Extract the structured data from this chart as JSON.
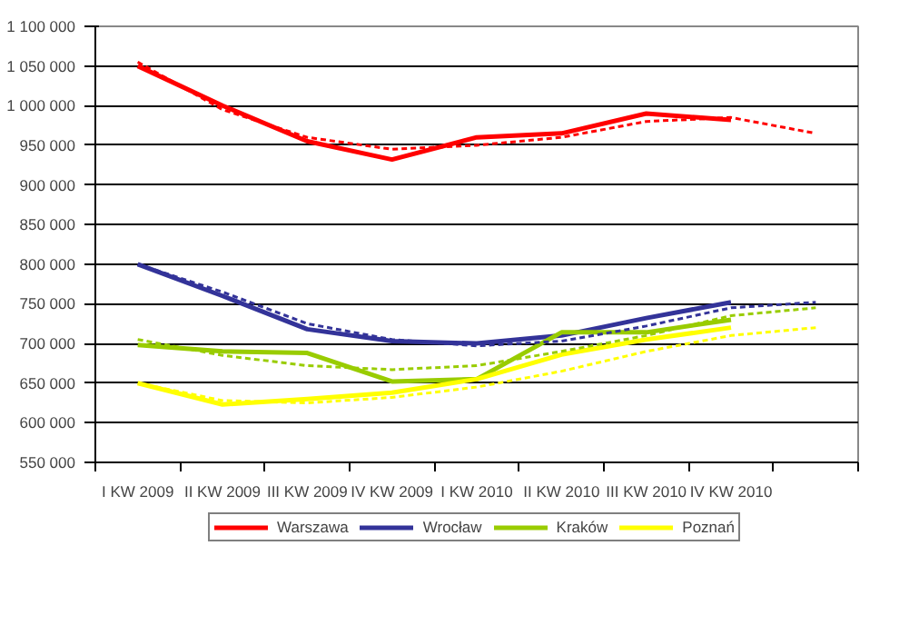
{
  "chart_data": {
    "type": "line",
    "categories": [
      "I KW 2009",
      "II KW 2009",
      "III KW 2009",
      "IV KW 2009",
      "I KW 2010",
      "II KW 2010",
      "III KW 2010",
      "IV KW 2010",
      null
    ],
    "series": [
      {
        "name": "Warszawa",
        "color": "#ff0000",
        "values": [
          1050000,
          1000000,
          955000,
          932000,
          960000,
          965000,
          990000,
          982000,
          null
        ]
      },
      {
        "name": "Wrocław",
        "color": "#333399",
        "values": [
          800000,
          760000,
          718000,
          703000,
          700000,
          710000,
          732000,
          752000,
          null
        ]
      },
      {
        "name": "Kraków",
        "color": "#99cc00",
        "values": [
          698000,
          690000,
          688000,
          652000,
          655000,
          714000,
          714000,
          730000,
          null
        ]
      },
      {
        "name": "Poznań",
        "color": "#ffff00",
        "values": [
          650000,
          623000,
          630000,
          638000,
          655000,
          686000,
          705000,
          720000,
          null
        ]
      },
      {
        "color": "#ff0000",
        "line_style": "dashed",
        "values": [
          1055000,
          995000,
          960000,
          945000,
          950000,
          960000,
          980000,
          985000,
          965000
        ]
      },
      {
        "color": "#333399",
        "line_style": "dashed",
        "values": [
          800000,
          765000,
          725000,
          705000,
          697000,
          703000,
          722000,
          745000,
          752000
        ]
      },
      {
        "color": "#99cc00",
        "line_style": "dashed",
        "values": [
          705000,
          685000,
          672000,
          667000,
          672000,
          690000,
          710000,
          735000,
          745000
        ]
      },
      {
        "color": "#ffff00",
        "line_style": "dashed",
        "values": [
          650000,
          628000,
          625000,
          632000,
          645000,
          665000,
          690000,
          710000,
          720000
        ]
      }
    ],
    "ylim": [
      550000,
      1100000
    ],
    "yticks": [
      {
        "value": 550000,
        "label": "550 000"
      },
      {
        "value": 600000,
        "label": "600 000"
      },
      {
        "value": 650000,
        "label": "650 000"
      },
      {
        "value": 700000,
        "label": "700 000"
      },
      {
        "value": 750000,
        "label": "750 000"
      },
      {
        "value": 800000,
        "label": "800 000"
      },
      {
        "value": 850000,
        "label": "850 000"
      },
      {
        "value": 900000,
        "label": "900 000"
      },
      {
        "value": 950000,
        "label": "950 000"
      },
      {
        "value": 1000000,
        "label": "1 000 000"
      },
      {
        "value": 1050000,
        "label": "1 050 000"
      },
      {
        "value": 1100000,
        "label": "1 100 000"
      }
    ],
    "grid": "y",
    "legend": "bottom",
    "marker": "none",
    "line_style": "solid"
  }
}
